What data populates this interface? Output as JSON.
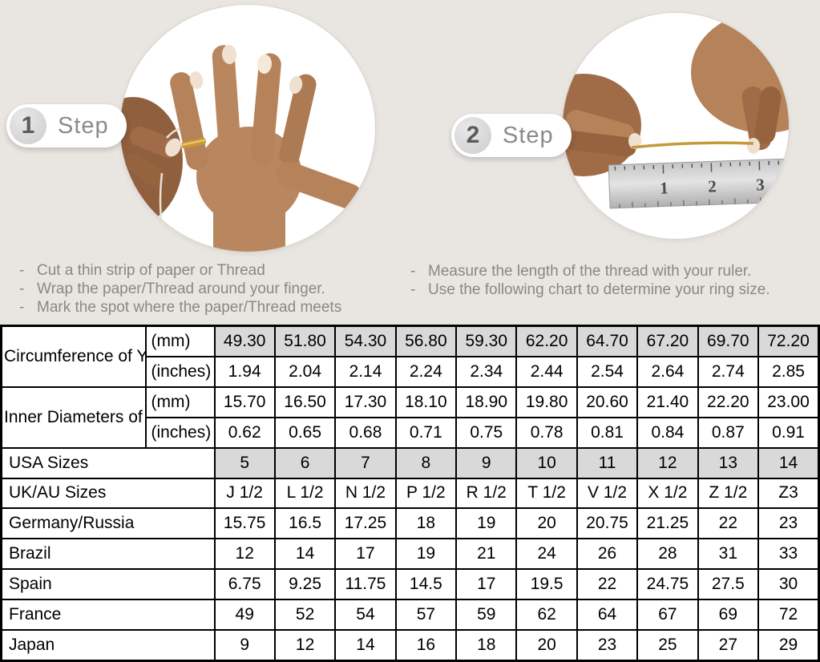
{
  "colors": {
    "top_background": "#e9e6e1",
    "table_shaded_cell": "#d9d9d9",
    "table_border": "#000000",
    "step_text": "#8a8a8a",
    "bullet_text": "#8b8884",
    "ring_gold": "#c8992f"
  },
  "bullet_prefix": "-",
  "steps": [
    {
      "number": "1",
      "label": "Step",
      "bullets": [
        "Cut a thin strip of paper or Thread",
        "Wrap the paper/Thread around your finger.",
        "Mark the spot where the paper/Thread meets"
      ]
    },
    {
      "number": "2",
      "label": "Step",
      "bullets": [
        "Measure the length of the thread with your ruler.",
        "Use the following chart to determine your ring size."
      ]
    }
  ],
  "step2_image": {
    "ruler_numbers": [
      "1",
      "2",
      "3"
    ]
  },
  "table": {
    "rows": [
      {
        "label": "Circumference of Your Finger",
        "rowspan": 2,
        "unit": "(mm)",
        "shaded": true,
        "values": [
          "49.30",
          "51.80",
          "54.30",
          "56.80",
          "59.30",
          "62.20",
          "64.70",
          "67.20",
          "69.70",
          "72.20"
        ]
      },
      {
        "unit": "(inches)",
        "values": [
          "1.94",
          "2.04",
          "2.14",
          "2.24",
          "2.34",
          "2.44",
          "2.54",
          "2.64",
          "2.74",
          "2.85"
        ]
      },
      {
        "label": "Inner Diameters of Rings",
        "rowspan": 2,
        "unit": "(mm)",
        "values": [
          "15.70",
          "16.50",
          "17.30",
          "18.10",
          "18.90",
          "19.80",
          "20.60",
          "21.40",
          "22.20",
          "23.00"
        ]
      },
      {
        "unit": "(inches)",
        "values": [
          "0.62",
          "0.65",
          "0.68",
          "0.71",
          "0.75",
          "0.78",
          "0.81",
          "0.84",
          "0.87",
          "0.91"
        ]
      },
      {
        "label": "USA Sizes",
        "label_colspan": 2,
        "shaded": true,
        "values": [
          "5",
          "6",
          "7",
          "8",
          "9",
          "10",
          "11",
          "12",
          "13",
          "14"
        ]
      },
      {
        "label": "UK/AU Sizes",
        "label_colspan": 2,
        "values": [
          "J 1/2",
          "L 1/2",
          "N 1/2",
          "P 1/2",
          "R 1/2",
          "T 1/2",
          "V 1/2",
          "X 1/2",
          "Z 1/2",
          "Z3"
        ]
      },
      {
        "label": "Germany/Russia",
        "label_colspan": 2,
        "values": [
          "15.75",
          "16.5",
          "17.25",
          "18",
          "19",
          "20",
          "20.75",
          "21.25",
          "22",
          "23"
        ]
      },
      {
        "label": "Brazil",
        "label_colspan": 2,
        "values": [
          "12",
          "14",
          "17",
          "19",
          "21",
          "24",
          "26",
          "28",
          "31",
          "33"
        ]
      },
      {
        "label": "Spain",
        "label_colspan": 2,
        "values": [
          "6.75",
          "9.25",
          "11.75",
          "14.5",
          "17",
          "19.5",
          "22",
          "24.75",
          "27.5",
          "30"
        ]
      },
      {
        "label": "France",
        "label_colspan": 2,
        "values": [
          "49",
          "52",
          "54",
          "57",
          "59",
          "62",
          "64",
          "67",
          "69",
          "72"
        ]
      },
      {
        "label": "Japan",
        "label_colspan": 2,
        "values": [
          "9",
          "12",
          "14",
          "16",
          "18",
          "20",
          "23",
          "25",
          "27",
          "29"
        ]
      }
    ]
  }
}
